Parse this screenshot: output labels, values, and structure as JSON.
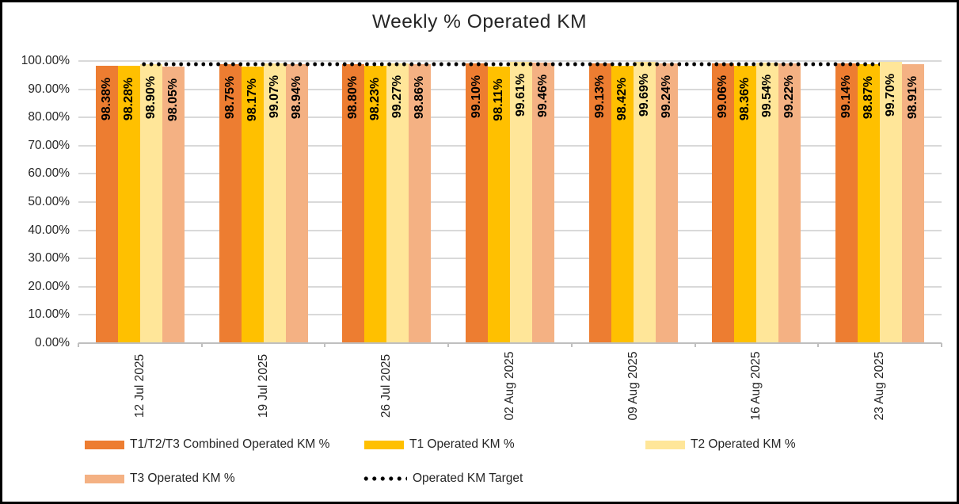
{
  "chart_data": {
    "type": "bar",
    "title": "Weekly % Operated KM",
    "categories": [
      "12 Jul 2025",
      "19 Jul 2025",
      "26 Jul 2025",
      "02 Aug 2025",
      "09 Aug 2025",
      "16 Aug 2025",
      "23 Aug 2025"
    ],
    "series": [
      {
        "name": "T1/T2/T3 Combined Operated KM %",
        "color": "#ED7D31",
        "values": [
          98.38,
          98.75,
          98.8,
          99.1,
          99.13,
          99.06,
          99.14
        ]
      },
      {
        "name": "T1 Operated KM %",
        "color": "#FFC000",
        "values": [
          98.28,
          98.17,
          98.23,
          98.11,
          98.42,
          98.36,
          98.87
        ]
      },
      {
        "name": "T2 Operated KM %",
        "color": "#FFE699",
        "values": [
          98.9,
          99.07,
          99.27,
          99.61,
          99.69,
          99.54,
          99.7
        ]
      },
      {
        "name": "T3 Operated KM %",
        "color": "#F4B183",
        "values": [
          98.05,
          98.94,
          98.86,
          99.46,
          99.24,
          99.22,
          98.91
        ]
      }
    ],
    "target_line": {
      "name": "Operated KM Target",
      "value": 99,
      "color": "#000000",
      "style": "dotted"
    },
    "y_axis": {
      "tick_labels": [
        "100.00%",
        "90.00%",
        "80.00%",
        "70.00%",
        "60.00%",
        "50.00%",
        "40.00%",
        "30.00%",
        "20.00%",
        "10.00%",
        "0.00%"
      ],
      "min": 0,
      "max": 100,
      "step": 10
    },
    "data_labels": {
      "visible": true,
      "format": "0.00%",
      "rotation": -90
    },
    "grid": true,
    "legend_position": "bottom",
    "colors": {
      "gridline": "#D9D9D9",
      "axis": "#BFBFBF",
      "text": "#262626"
    }
  }
}
